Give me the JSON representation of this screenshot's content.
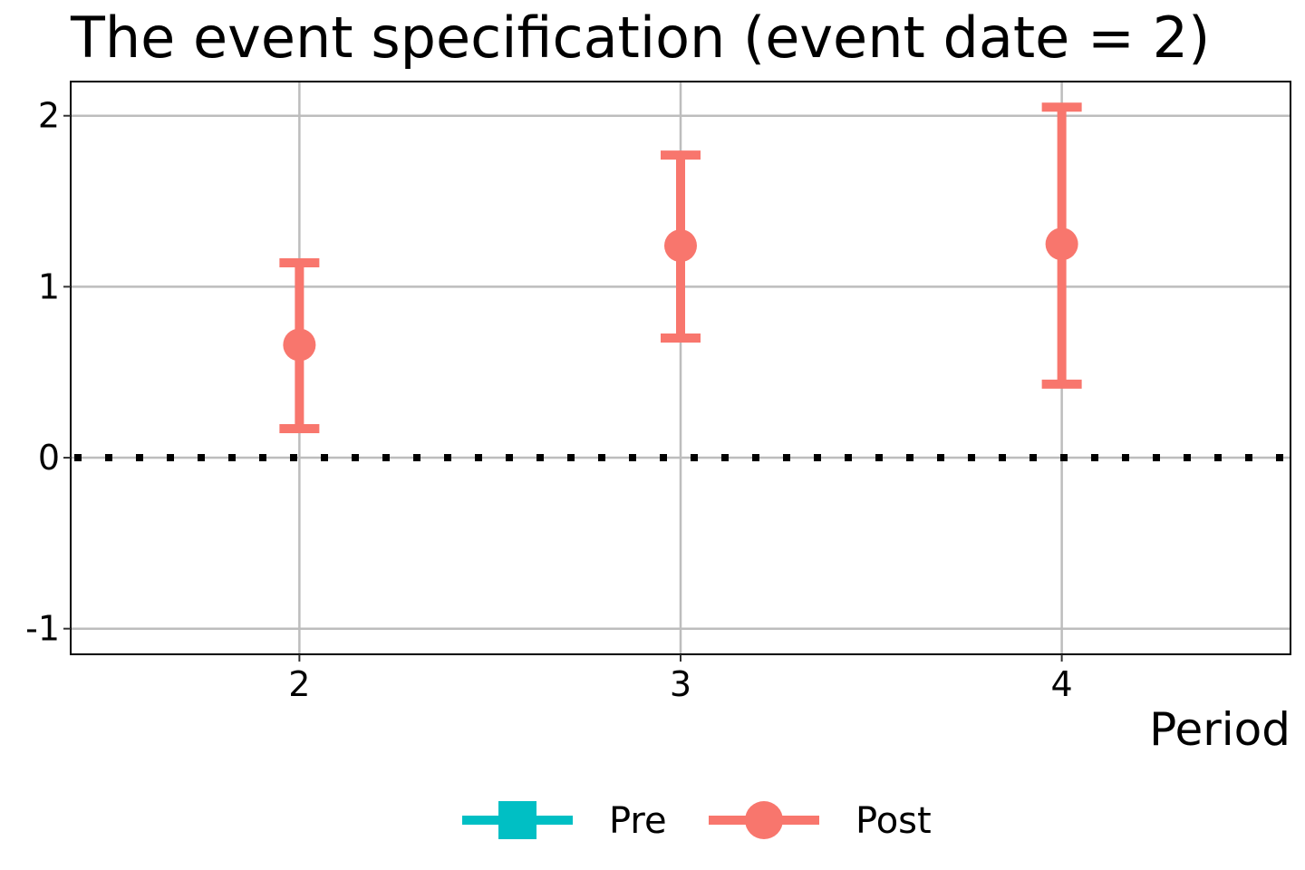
{
  "chart_data": {
    "type": "scatter",
    "title": "The event specification (event date = 2)",
    "xlabel": "Period",
    "ylabel": "",
    "xlim": [
      1.4,
      4.6
    ],
    "ylim": [
      -1.15,
      2.2
    ],
    "x_ticks": [
      2,
      3,
      4
    ],
    "x_tick_labels": [
      "2",
      "3",
      "4"
    ],
    "y_ticks": [
      -1,
      0,
      1,
      2
    ],
    "y_tick_labels": [
      "-1",
      "0",
      "1",
      "2"
    ],
    "grid": true,
    "reference_line": {
      "y": 0,
      "style": "dotted",
      "color": "#000000"
    },
    "legend_position": "bottom",
    "series": [
      {
        "name": "Pre",
        "color": "#00BFC4",
        "marker": "square",
        "points": []
      },
      {
        "name": "Post",
        "color": "#F8766D",
        "marker": "circle",
        "points": [
          {
            "x": 2,
            "y": 0.66,
            "lower": 0.17,
            "upper": 1.14
          },
          {
            "x": 3,
            "y": 1.24,
            "lower": 0.7,
            "upper": 1.77
          },
          {
            "x": 4,
            "y": 1.25,
            "lower": 0.43,
            "upper": 2.05
          }
        ]
      }
    ]
  }
}
